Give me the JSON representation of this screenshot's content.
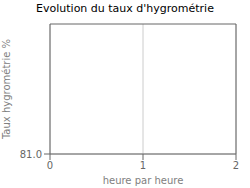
{
  "chart_data": {
    "type": "line",
    "title": "Evolution du taux d'hygrométrie",
    "xlabel": "heure par heure",
    "ylabel": "Taux hygrométrie %",
    "xlim": [
      0,
      2
    ],
    "xticks": [
      0,
      1,
      2
    ],
    "ylim": [
      81.0,
      81.5
    ],
    "yticks": [
      {
        "value": 81.0,
        "label": "81.0"
      }
    ],
    "grid": true
  }
}
